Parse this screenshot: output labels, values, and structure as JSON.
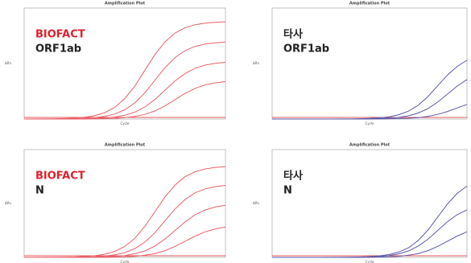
{
  "chart_data": [
    {
      "type": "line",
      "title": "Amplification Plot",
      "x_label": "Cycle",
      "y_label": "ΔRn",
      "label": "BIOFACT",
      "label_color": "#e0202a",
      "sublabel": "ORF1ab",
      "x": [
        0,
        2,
        4,
        6,
        8,
        10,
        12,
        14,
        16,
        18,
        20,
        22,
        24,
        26,
        28,
        30,
        32,
        34,
        36,
        38,
        40
      ],
      "xlim": [
        0,
        40
      ],
      "ylim": [
        0,
        100
      ],
      "series": [
        {
          "color": "#e8626a",
          "values": [
            0,
            0.1,
            0.1,
            0.2,
            0.4,
            0.8,
            1.6,
            3.0,
            5.7,
            10.5,
            18.4,
            29.8,
            44,
            58.2,
            69.6,
            77.5,
            82.3,
            85,
            86.4,
            87.2,
            87.6
          ]
        },
        {
          "color": "#e8626a",
          "values": [
            0,
            0,
            0.1,
            0.1,
            0.2,
            0.3,
            0.7,
            1.3,
            2.4,
            4.6,
            8.3,
            14.6,
            23.7,
            35,
            46.3,
            55.4,
            61.7,
            65.5,
            67.6,
            68.7,
            69.4
          ]
        },
        {
          "color": "#e8626a",
          "values": [
            0,
            0,
            0,
            0.1,
            0.1,
            0.1,
            0.2,
            0.5,
            0.9,
            1.8,
            3.4,
            6.2,
            10.9,
            17.6,
            26,
            34.4,
            41.1,
            45.8,
            48.6,
            50.2,
            51.1
          ]
        },
        {
          "color": "#e8626a",
          "values": [
            0,
            0,
            0,
            0,
            0,
            0,
            0.1,
            0.2,
            0.3,
            0.6,
            1.2,
            2.3,
            4.2,
            7.3,
            11.9,
            17.5,
            23.1,
            27.7,
            30.8,
            32.6,
            33.7
          ]
        }
      ]
    },
    {
      "type": "line",
      "title": "Amplification Plot",
      "x_label": "Cycle",
      "y_label": "ΔRn",
      "label": "타사",
      "label_color": "#222222",
      "sublabel": "ORF1ab",
      "x": [
        0,
        2,
        4,
        6,
        8,
        10,
        12,
        14,
        16,
        18,
        20,
        22,
        24,
        26,
        28,
        30,
        32,
        34,
        36,
        38,
        40
      ],
      "xlim": [
        0,
        40
      ],
      "ylim": [
        0,
        100
      ],
      "series": [
        {
          "color": "#5a5aa8",
          "values": [
            0,
            0,
            0,
            0,
            0,
            0,
            0,
            0.1,
            0.1,
            0.3,
            0.6,
            1.1,
            2,
            3.9,
            7.1,
            12.5,
            20.3,
            30,
            39.7,
            47.5,
            52.9
          ]
        },
        {
          "color": "#5a5aa8",
          "values": [
            0,
            0,
            0,
            0,
            0,
            0,
            0,
            0,
            0,
            0.1,
            0.2,
            0.4,
            0.8,
            1.5,
            2.9,
            5.4,
            9.4,
            15.3,
            22.5,
            29.7,
            35.6
          ]
        },
        {
          "color": "#5a5aa8",
          "values": [
            0,
            0,
            0,
            0,
            0,
            0,
            0,
            0,
            0,
            0,
            0.1,
            0.1,
            0.2,
            0.4,
            0.7,
            1.3,
            2.4,
            4.2,
            6.8,
            10,
            13.2
          ]
        }
      ]
    },
    {
      "type": "line",
      "title": "Amplification Plot",
      "x_label": "Cycle",
      "y_label": "ΔRn",
      "label": "BIOFACT",
      "label_color": "#e0202a",
      "sublabel": "N",
      "x": [
        0,
        2,
        4,
        6,
        8,
        10,
        12,
        14,
        16,
        18,
        20,
        22,
        24,
        26,
        28,
        30,
        32,
        34,
        36,
        38,
        40
      ],
      "xlim": [
        0,
        40
      ],
      "ylim": [
        0,
        100
      ],
      "series": [
        {
          "color": "#e8626a",
          "values": [
            0,
            0,
            0.1,
            0.1,
            0.2,
            0.4,
            0.8,
            1.5,
            2.9,
            5.5,
            10.1,
            17.8,
            28.8,
            42.5,
            56.2,
            67.2,
            74.9,
            79.5,
            82.1,
            83.5,
            84.2
          ]
        },
        {
          "color": "#e8626a",
          "values": [
            0,
            0,
            0,
            0.1,
            0.1,
            0.2,
            0.3,
            0.6,
            1.2,
            2.3,
            4.4,
            8.1,
            14.2,
            23,
            34,
            45,
            53.8,
            59.9,
            63.6,
            65.7,
            66.8
          ]
        },
        {
          "color": "#e8626a",
          "values": [
            0,
            0,
            0,
            0,
            0,
            0,
            0.1,
            0.2,
            0.5,
            0.9,
            1.7,
            3.4,
            6,
            10.5,
            17,
            25,
            33,
            39.6,
            44,
            46.8,
            48.3
          ]
        },
        {
          "color": "#e8626a",
          "values": [
            0,
            0,
            0,
            0,
            0,
            0,
            0,
            0.1,
            0.1,
            0.3,
            0.5,
            1,
            2,
            3.6,
            6.3,
            10.2,
            15,
            19.8,
            23.7,
            26.4,
            28.1
          ]
        }
      ]
    },
    {
      "type": "line",
      "title": "Amplification Plot",
      "x_label": "Cycle",
      "y_label": "ΔRn",
      "label": "타사",
      "label_color": "#222222",
      "sublabel": "N",
      "x": [
        0,
        2,
        4,
        6,
        8,
        10,
        12,
        14,
        16,
        18,
        20,
        22,
        24,
        26,
        28,
        30,
        32,
        34,
        36,
        38,
        40
      ],
      "xlim": [
        0,
        40
      ],
      "ylim": [
        0,
        100
      ],
      "series": [
        {
          "color": "#5a5aa8",
          "values": [
            0,
            0,
            0,
            0,
            0,
            0,
            0.1,
            0.1,
            0.2,
            0.4,
            0.7,
            1.4,
            2.6,
            4.9,
            8.9,
            15.7,
            25.4,
            37.5,
            49.6,
            59.4,
            66.1
          ]
        },
        {
          "color": "#5a5aa8",
          "values": [
            0,
            0,
            0,
            0,
            0,
            0,
            0,
            0.1,
            0.1,
            0.2,
            0.5,
            0.9,
            1.7,
            3.3,
            6,
            10.5,
            16.9,
            25,
            33.1,
            39.6,
            44.1
          ]
        },
        {
          "color": "#5a5aa8",
          "values": [
            0,
            0,
            0,
            0,
            0,
            0,
            0,
            0,
            0,
            0.1,
            0.1,
            0.3,
            0.5,
            1,
            2,
            3.6,
            6.3,
            10.2,
            15,
            19.8,
            23.7
          ]
        }
      ]
    }
  ]
}
